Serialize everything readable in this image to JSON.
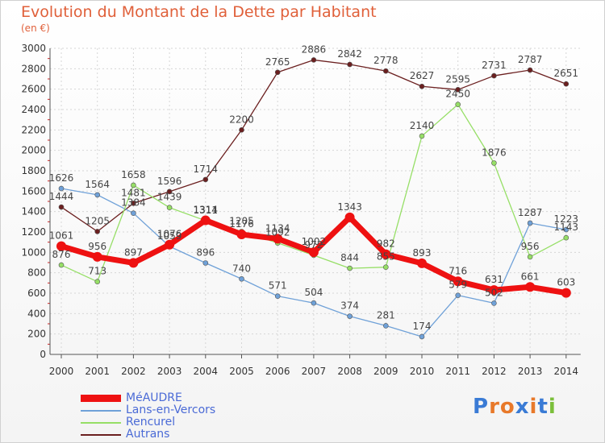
{
  "title": "Evolution du Montant de la Dette par Habitant",
  "unit_label": "(en €)",
  "logo": {
    "text": "Proxiti",
    "letter_colors": [
      "#3a7bd5",
      "#e8792a",
      "#e8792a",
      "#3a7bd5",
      "#e8792a",
      "#3a7bd5",
      "#7bbf3a"
    ]
  },
  "chart_data": {
    "type": "line",
    "x": [
      "2000",
      "2001",
      "2002",
      "2003",
      "2004",
      "2005",
      "2006",
      "2007",
      "2008",
      "2009",
      "2010",
      "2011",
      "2012",
      "2013",
      "2014"
    ],
    "ylim": [
      0,
      3000
    ],
    "yticks": [
      0,
      200,
      400,
      600,
      800,
      1000,
      1200,
      1400,
      1600,
      1800,
      2000,
      2200,
      2400,
      2600,
      2800,
      3000
    ],
    "grid": true,
    "legend_position": "bottom-left",
    "series": [
      {
        "name": "Autrans",
        "color": "#6b1f1f",
        "width": 1.3,
        "values": [
          1444,
          1205,
          1481,
          1596,
          1714,
          2200,
          2765,
          2886,
          2842,
          2778,
          2627,
          2595,
          2731,
          2787,
          2651
        ]
      },
      {
        "name": "Lans-en-Vercors",
        "color": "#6fa1d8",
        "width": 1.3,
        "values": [
          1626,
          1564,
          1384,
          1059,
          896,
          740,
          571,
          504,
          374,
          281,
          174,
          579,
          502,
          1287,
          1223
        ]
      },
      {
        "name": "Rencurel",
        "color": "#96df66",
        "width": 1.3,
        "values": [
          876,
          713,
          1658,
          1439,
          1311,
          1205,
          1092,
          972,
          844,
          855,
          2140,
          2450,
          1876,
          956,
          1143
        ]
      },
      {
        "name": "MéAUDRE",
        "color": "#ee1111",
        "width": 7,
        "values": [
          1061,
          956,
          897,
          1076,
          1314,
          1176,
          1134,
          1002,
          1343,
          982,
          893,
          716,
          631,
          661,
          603
        ]
      }
    ]
  }
}
